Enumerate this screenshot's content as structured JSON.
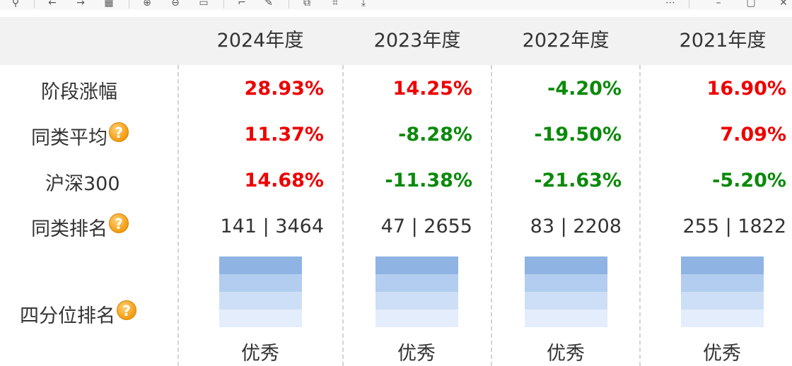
{
  "toolbar": {
    "icons": [
      "pin-icon",
      "back-icon",
      "forward-icon",
      "grid-icon",
      "zoom-in-icon",
      "zoom-out-icon",
      "fit-icon",
      "crop-icon",
      "edit-icon",
      "copy-icon",
      "ocr-icon",
      "download-icon",
      "more-icon",
      "minimize-icon",
      "maximize-icon",
      "close-icon"
    ]
  },
  "header": {
    "years": [
      "2024年度",
      "2023年度",
      "2022年度",
      "2021年度"
    ]
  },
  "rows": {
    "stage_return": {
      "label": "阶段涨幅",
      "values": [
        "28.93%",
        "14.25%",
        "-4.20%",
        "16.90%"
      ]
    },
    "peer_avg": {
      "label": "同类平均",
      "values": [
        "11.37%",
        "-8.28%",
        "-19.50%",
        "7.09%"
      ]
    },
    "hs300": {
      "label": "沪深300",
      "values": [
        "14.68%",
        "-11.38%",
        "-21.63%",
        "-5.20%"
      ]
    },
    "peer_rank": {
      "label": "同类排名",
      "values": [
        "141 | 3464",
        "47 | 2655",
        "83 | 2208",
        "255 | 1822"
      ]
    },
    "quartile": {
      "label": "四分位排名",
      "values": [
        "优秀",
        "优秀",
        "优秀",
        "优秀"
      ]
    }
  },
  "help_icon": "?",
  "colors": {
    "positive": "#ee0000",
    "negative": "#0a8a0a",
    "header_bg": "#f2f2f2",
    "quartile_top": "#8fb3e3"
  }
}
